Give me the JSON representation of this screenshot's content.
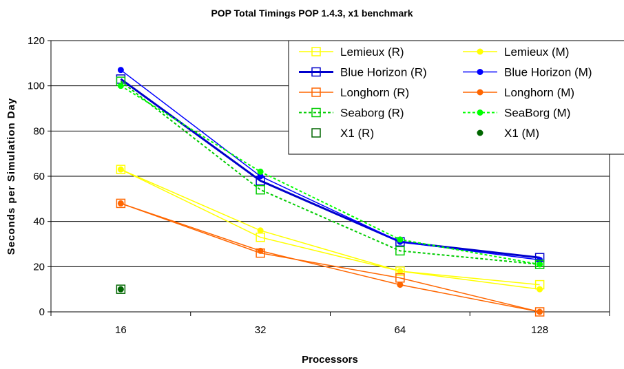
{
  "chart_data": {
    "type": "line",
    "title": "POP Total Timings POP 1.4.3, x1 benchmark",
    "xlabel": "Processors",
    "ylabel": "Seconds per Simulation Day",
    "categories": [
      "16",
      "32",
      "64",
      "128"
    ],
    "ylim": [
      0,
      120
    ],
    "yticks": [
      0,
      20,
      40,
      60,
      80,
      100,
      120
    ],
    "grid": "horizontal",
    "legend_position": "top-right",
    "series": [
      {
        "name": "Lemieux (R)",
        "values": [
          63,
          33,
          18,
          12
        ],
        "color": "#ffff00",
        "style": "solid",
        "width": 1.5,
        "marker": "square"
      },
      {
        "name": "Lemieux (M)",
        "values": [
          63,
          36,
          18,
          10
        ],
        "color": "#ffff00",
        "style": "solid",
        "width": 1.5,
        "marker": "dot"
      },
      {
        "name": "Blue Horizon (R)",
        "values": [
          103,
          58,
          31,
          24
        ],
        "color": "#0000cc",
        "style": "solid",
        "width": 3,
        "marker": "square"
      },
      {
        "name": "Blue Horizon (M)",
        "values": [
          107,
          60,
          31,
          23
        ],
        "color": "#0000ff",
        "style": "solid",
        "width": 1.5,
        "marker": "dot"
      },
      {
        "name": "Longhorn (R)",
        "values": [
          48,
          26,
          15,
          0
        ],
        "color": "#ff6600",
        "style": "solid",
        "width": 1.5,
        "marker": "square"
      },
      {
        "name": "Longhorn (M)",
        "values": [
          48,
          27,
          12,
          0
        ],
        "color": "#ff6600",
        "style": "solid",
        "width": 1.5,
        "marker": "dot"
      },
      {
        "name": "Seaborg (R)",
        "values": [
          102,
          54,
          27,
          21
        ],
        "color": "#00cc00",
        "style": "dashed",
        "width": 2,
        "marker": "square"
      },
      {
        "name": "SeaBorg (M)",
        "values": [
          100,
          62,
          32,
          21
        ],
        "color": "#00ff00",
        "style": "dashed",
        "width": 2,
        "marker": "dot"
      },
      {
        "name": "X1 (R)",
        "values": [
          10,
          null,
          null,
          null
        ],
        "color": "#006600",
        "style": "none",
        "width": 0,
        "marker": "square"
      },
      {
        "name": "X1 (M)",
        "values": [
          10,
          null,
          null,
          null
        ],
        "color": "#006600",
        "style": "none",
        "width": 0,
        "marker": "dot"
      }
    ]
  }
}
